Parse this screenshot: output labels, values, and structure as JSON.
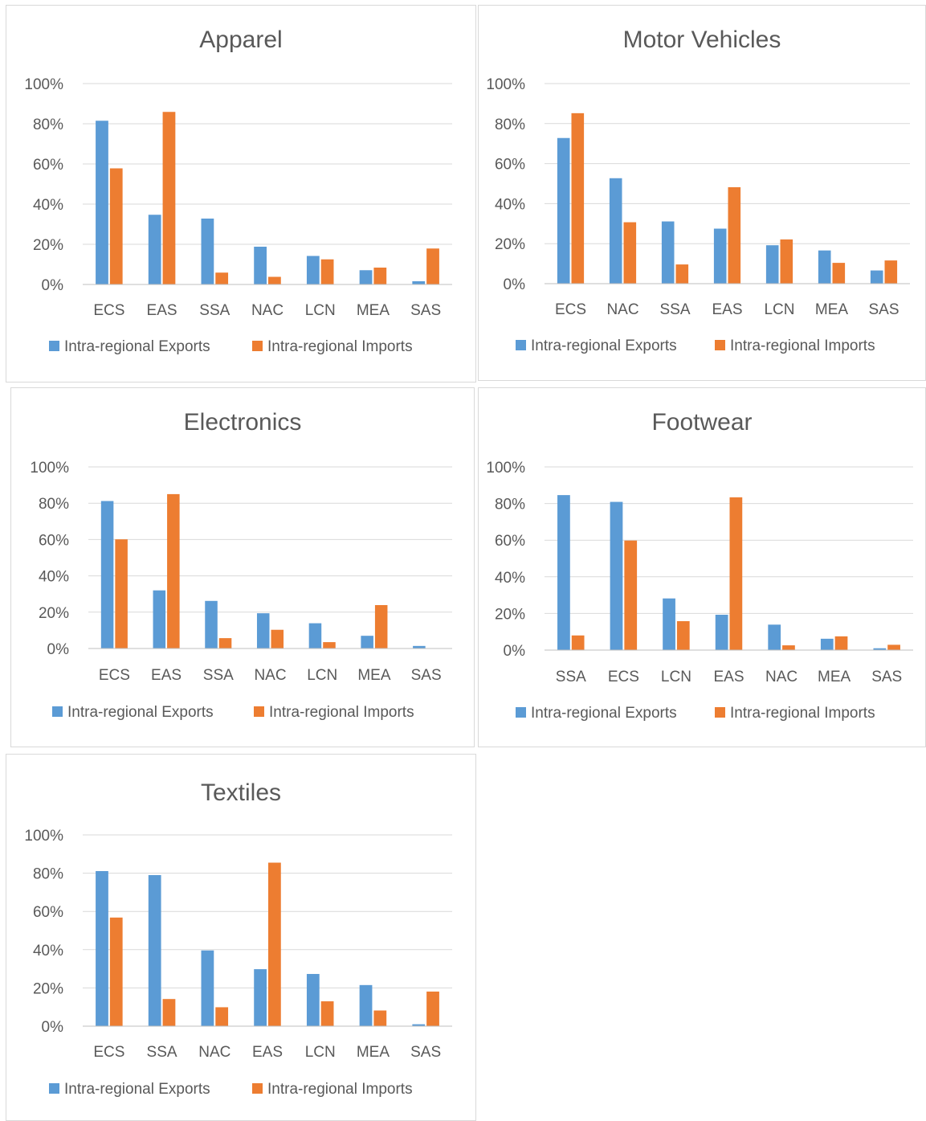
{
  "colors": {
    "exports": "#5b9bd5",
    "imports": "#ed7d31"
  },
  "legend": {
    "exports": "Intra-regional Exports",
    "imports": "Intra-regional Imports"
  },
  "chart_data": [
    {
      "type": "bar",
      "title": "Apparel",
      "ylim": [
        0,
        100
      ],
      "yticks": [
        "0%",
        "20%",
        "40%",
        "60%",
        "80%",
        "100%"
      ],
      "categories": [
        "ECS",
        "EAS",
        "SSA",
        "NAC",
        "LCN",
        "MEA",
        "SAS"
      ],
      "series": [
        {
          "name": "Intra-regional Exports",
          "values": [
            81.5,
            34.7,
            32.8,
            18.8,
            14.2,
            7.1,
            1.6
          ]
        },
        {
          "name": "Intra-regional Imports",
          "values": [
            57.8,
            85.9,
            5.9,
            3.8,
            12.5,
            8.4,
            17.9
          ]
        }
      ],
      "grid": true,
      "legend_position": "bottom"
    },
    {
      "type": "bar",
      "title": "Motor Vehicles",
      "ylim": [
        0,
        100
      ],
      "yticks": [
        "0%",
        "20%",
        "40%",
        "60%",
        "80%",
        "100%"
      ],
      "categories": [
        "ECS",
        "NAC",
        "SSA",
        "EAS",
        "LCN",
        "MEA",
        "SAS"
      ],
      "series": [
        {
          "name": "Intra-regional Exports",
          "values": [
            72.8,
            52.7,
            31.1,
            27.5,
            19.2,
            16.6,
            6.6
          ]
        },
        {
          "name": "Intra-regional Imports",
          "values": [
            85.2,
            30.7,
            9.6,
            48.2,
            22.1,
            10.4,
            11.6
          ]
        }
      ],
      "grid": true,
      "legend_position": "bottom"
    },
    {
      "type": "bar",
      "title": "Electronics",
      "ylim": [
        0,
        100
      ],
      "yticks": [
        "0%",
        "20%",
        "40%",
        "60%",
        "80%",
        "100%"
      ],
      "categories": [
        "ECS",
        "EAS",
        "SSA",
        "NAC",
        "LCN",
        "MEA",
        "SAS"
      ],
      "series": [
        {
          "name": "Intra-regional Exports",
          "values": [
            81.2,
            32.0,
            26.2,
            19.4,
            13.9,
            7.0,
            1.4
          ]
        },
        {
          "name": "Intra-regional Imports",
          "values": [
            60.1,
            85.0,
            5.7,
            10.3,
            3.5,
            23.9,
            0
          ]
        }
      ],
      "grid": true,
      "legend_position": "bottom"
    },
    {
      "type": "bar",
      "title": "Footwear",
      "ylim": [
        0,
        100
      ],
      "yticks": [
        "0%",
        "20%",
        "40%",
        "60%",
        "80%",
        "100%"
      ],
      "categories": [
        "SSA",
        "ECS",
        "LCN",
        "EAS",
        "NAC",
        "MEA",
        "SAS"
      ],
      "series": [
        {
          "name": "Intra-regional Exports",
          "values": [
            84.6,
            80.9,
            28.2,
            19.3,
            13.9,
            6.2,
            1.0
          ]
        },
        {
          "name": "Intra-regional Imports",
          "values": [
            8.0,
            59.8,
            15.8,
            83.4,
            2.6,
            7.5,
            2.9
          ]
        }
      ],
      "grid": true,
      "legend_position": "bottom"
    },
    {
      "type": "bar",
      "title": "Textiles",
      "ylim": [
        0,
        100
      ],
      "yticks": [
        "0%",
        "20%",
        "40%",
        "60%",
        "80%",
        "100%"
      ],
      "categories": [
        "ECS",
        "SSA",
        "NAC",
        "EAS",
        "LCN",
        "MEA",
        "SAS"
      ],
      "series": [
        {
          "name": "Intra-regional Exports",
          "values": [
            81.1,
            79.0,
            39.6,
            29.8,
            27.3,
            21.5,
            1.0
          ]
        },
        {
          "name": "Intra-regional Imports",
          "values": [
            56.8,
            14.2,
            9.9,
            85.5,
            13.0,
            8.2,
            18.1
          ]
        }
      ],
      "grid": true,
      "legend_position": "bottom"
    }
  ]
}
